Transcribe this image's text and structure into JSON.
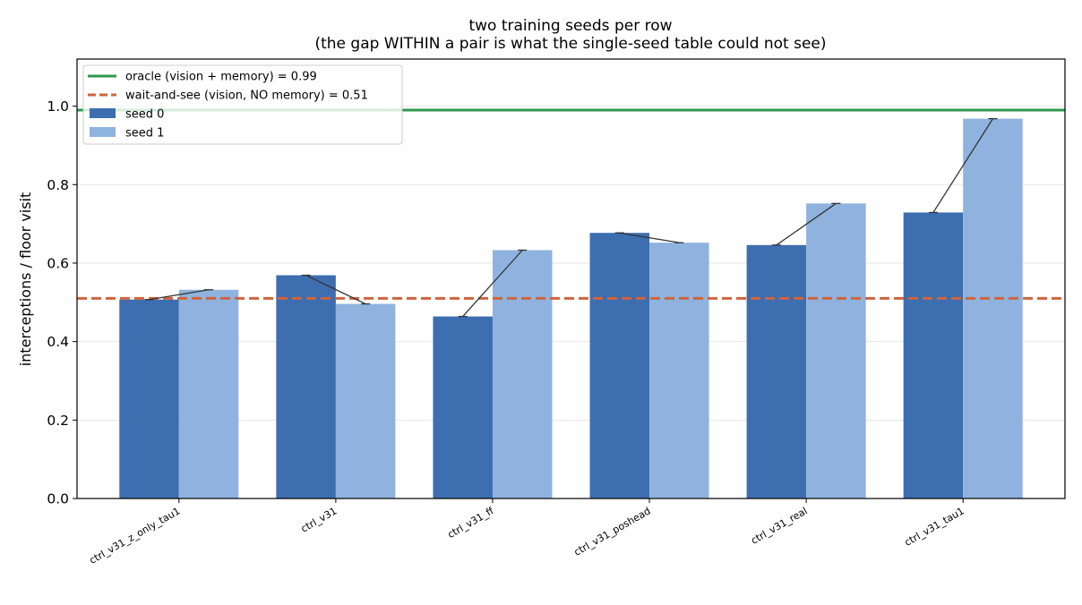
{
  "chart_data": {
    "type": "bar",
    "title": "two training seeds per row",
    "subtitle": "(the gap WITHIN a pair is what the single-seed table could not see)",
    "xlabel": "",
    "ylabel": "interceptions / floor visit",
    "ylim": [
      0,
      1.12
    ],
    "yticks": [
      "0.0",
      "0.2",
      "0.4",
      "0.6",
      "0.8",
      "1.0"
    ],
    "grid": "horizontal",
    "legend_position": "top-left",
    "categories": [
      "ctrl_v31_z_only_tau1",
      "ctrl_v31",
      "ctrl_v31_ff",
      "ctrl_v31_poshead",
      "ctrl_v31_real",
      "ctrl_v31_tau1"
    ],
    "series": [
      {
        "name": "seed 0",
        "color": "#3d6eb0",
        "values": [
          0.507,
          0.569,
          0.464,
          0.677,
          0.646,
          0.729
        ]
      },
      {
        "name": "seed 1",
        "color": "#8fb3de",
        "values": [
          0.532,
          0.496,
          0.633,
          0.652,
          0.752,
          0.968
        ]
      }
    ],
    "reference_lines": [
      {
        "label": "oracle (vision + memory) = 0.99",
        "value": 0.99,
        "color": "#2e9a4e",
        "style": "solid"
      },
      {
        "label": "wait-and-see (vision, NO memory) = 0.51",
        "value": 0.51,
        "color": "#d0643c",
        "style": "dashed"
      }
    ],
    "pair_connector_color": "#333333"
  }
}
